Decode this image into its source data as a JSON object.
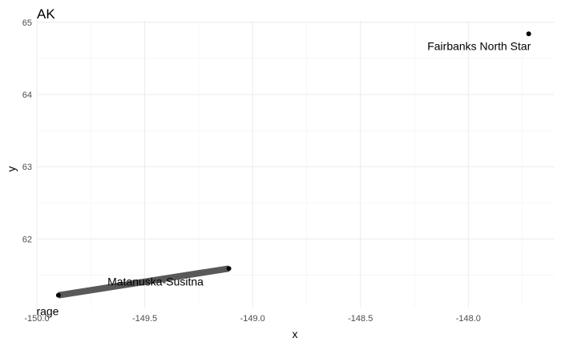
{
  "chart_data": {
    "type": "scatter",
    "title": "AK",
    "xlabel": "x",
    "ylabel": "y",
    "xlim": [
      -150.0,
      -147.6
    ],
    "ylim": [
      61.05,
      65.02
    ],
    "x_ticks": [
      -150.0,
      -149.5,
      -149.0,
      -148.5,
      -148.0
    ],
    "x_tick_labels": [
      "-150.0",
      "-149.5",
      "-149.0",
      "-148.5",
      "-148.0"
    ],
    "y_ticks": [
      62,
      63,
      64,
      65
    ],
    "y_tick_labels": [
      "62",
      "63",
      "64",
      "65"
    ],
    "grid": true,
    "points": [
      {
        "name": "Fairbanks North Star",
        "x": -147.72,
        "y": 64.84
      },
      {
        "name": "Matanuska-Susitna",
        "x": -149.11,
        "y": 61.59
      },
      {
        "name": "Anchorage",
        "x": -149.9,
        "y": 61.22
      }
    ],
    "segments": [
      {
        "from": [
          -149.9,
          61.22
        ],
        "to": [
          -149.11,
          61.59
        ],
        "color": "#595959"
      }
    ],
    "labels": [
      {
        "text": "Fairbanks North Star",
        "x": -147.95,
        "y": 64.67
      },
      {
        "text": "Matanuska-Susitna",
        "x": -149.45,
        "y": 61.41
      },
      {
        "text": "rage",
        "x": -149.95,
        "y": 61.0
      }
    ]
  }
}
